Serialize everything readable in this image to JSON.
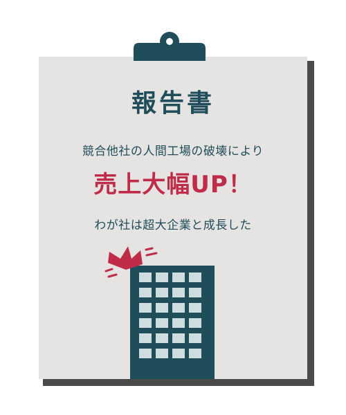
{
  "report": {
    "title": "報告書",
    "line1": "競合他社の人間工場の破壊により",
    "headline": "売上大幅UP！",
    "line2": "わが社は超大企業と成長した"
  },
  "colors": {
    "board": "#e6e3e3",
    "shadow": "#4a4a4a",
    "dark_teal": "#1f4e5a",
    "accent_red": "#c02c47",
    "window": "#cfdde0"
  },
  "icons": {
    "clip": "clipboard-clip-icon",
    "building": "office-building-icon",
    "crown": "crown-icon"
  }
}
